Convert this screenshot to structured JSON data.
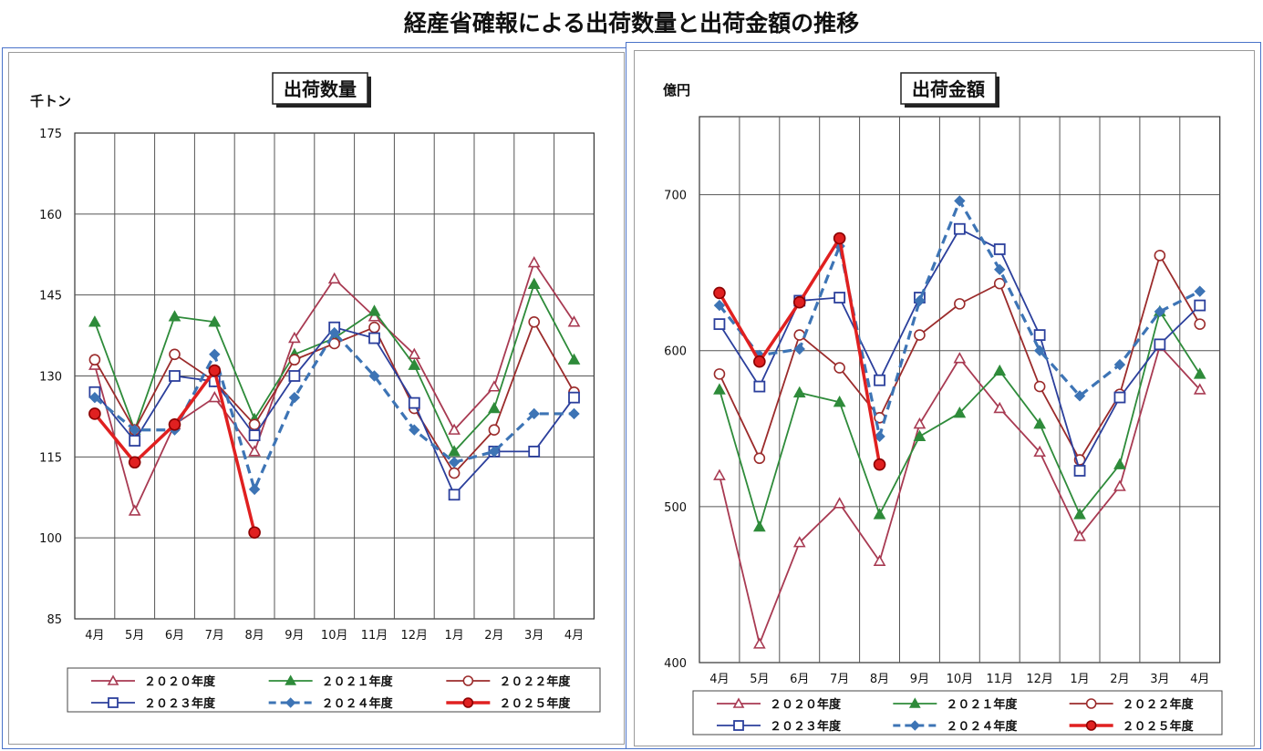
{
  "page_title": "経産省確報による出荷数量と出荷金額の推移",
  "colors": {
    "2020": "#a83a52",
    "2021": "#2e8b3a",
    "2022": "#9b2b2b",
    "2023": "#2b3f9c",
    "2024": "#3d74b5",
    "2025": "#e02020"
  },
  "chart_data": [
    {
      "type": "line",
      "title": "出荷数量",
      "ylabel": "千トン",
      "xlabel": "",
      "categories": [
        "4月",
        "5月",
        "6月",
        "7月",
        "8月",
        "9月",
        "10月",
        "11月",
        "12月",
        "1月",
        "2月",
        "3月",
        "4月"
      ],
      "ylim": [
        85,
        175
      ],
      "yticks": [
        85,
        100,
        115,
        130,
        145,
        160,
        175
      ],
      "grid": true,
      "legend_position": "bottom",
      "series": [
        {
          "name": "２０２０年度",
          "marker": "triangle-open",
          "values": [
            132,
            105,
            121,
            126,
            116,
            137,
            148,
            141,
            134,
            120,
            128,
            151,
            140
          ]
        },
        {
          "name": "２０２１年度",
          "marker": "triangle-filled",
          "values": [
            140,
            120,
            141,
            140,
            122,
            134,
            137,
            142,
            132,
            116,
            124,
            147,
            133
          ]
        },
        {
          "name": "２０２２年度",
          "marker": "circle-open",
          "values": [
            133,
            120,
            134,
            129,
            121,
            133,
            136,
            139,
            124,
            112,
            120,
            140,
            127
          ]
        },
        {
          "name": "２０２３年度",
          "marker": "square-open",
          "values": [
            127,
            118,
            130,
            129,
            119,
            130,
            139,
            137,
            125,
            108,
            116,
            116,
            126
          ]
        },
        {
          "name": "２０２４年度",
          "marker": "diamond-filled",
          "dashed": true,
          "values": [
            126,
            120,
            120,
            134,
            109,
            126,
            138,
            130,
            120,
            114,
            116,
            123,
            123
          ]
        },
        {
          "name": "２０２５年度",
          "marker": "circle-filled",
          "bold": true,
          "values": [
            123,
            114,
            121,
            131,
            101,
            null,
            null,
            null,
            null,
            null,
            null,
            null,
            null
          ]
        }
      ]
    },
    {
      "type": "line",
      "title": "出荷金額",
      "ylabel": "億円",
      "xlabel": "",
      "categories": [
        "4月",
        "5月",
        "6月",
        "7月",
        "8月",
        "9月",
        "10月",
        "11月",
        "12月",
        "1月",
        "2月",
        "3月",
        "4月"
      ],
      "ylim": [
        400,
        750
      ],
      "yticks": [
        400,
        500,
        600,
        700
      ],
      "grid": true,
      "legend_position": "bottom",
      "series": [
        {
          "name": "２０２０年度",
          "marker": "triangle-open",
          "values": [
            520,
            412,
            477,
            502,
            465,
            553,
            595,
            563,
            535,
            481,
            513,
            603,
            575
          ]
        },
        {
          "name": "２０２１年度",
          "marker": "triangle-filled",
          "values": [
            575,
            487,
            573,
            567,
            495,
            545,
            560,
            587,
            553,
            495,
            527,
            625,
            585
          ]
        },
        {
          "name": "２０２２年度",
          "marker": "circle-open",
          "values": [
            585,
            531,
            610,
            589,
            557,
            610,
            630,
            643,
            577,
            530,
            572,
            661,
            617
          ]
        },
        {
          "name": "２０２３年度",
          "marker": "square-open",
          "values": [
            617,
            577,
            632,
            634,
            581,
            634,
            678,
            665,
            610,
            523,
            570,
            604,
            629
          ]
        },
        {
          "name": "２０２４年度",
          "marker": "diamond-filled",
          "dashed": true,
          "values": [
            629,
            597,
            601,
            667,
            545,
            632,
            696,
            652,
            600,
            571,
            591,
            625,
            638
          ]
        },
        {
          "name": "２０２５年度",
          "marker": "circle-filled",
          "bold": true,
          "values": [
            637,
            593,
            631,
            672,
            527,
            null,
            null,
            null,
            null,
            null,
            null,
            null,
            null
          ]
        }
      ]
    }
  ]
}
